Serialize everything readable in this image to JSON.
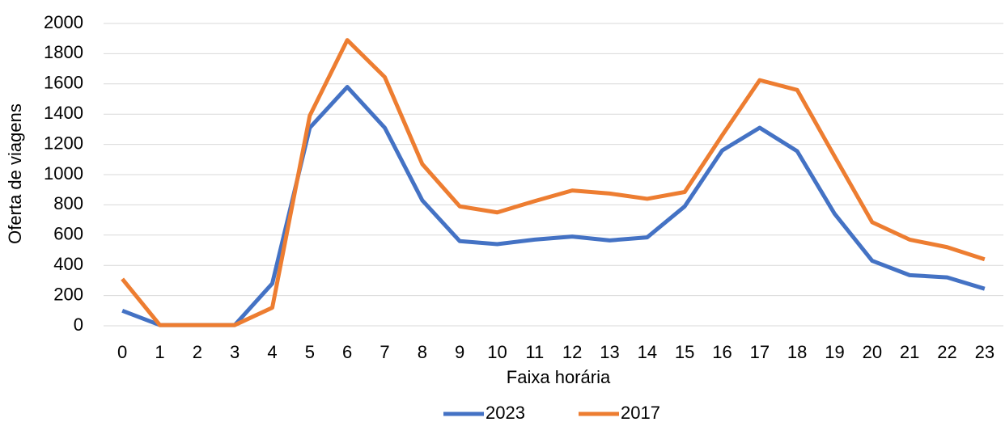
{
  "chart_data": {
    "type": "line",
    "x_label": "Faixa horária",
    "y_label": "Oferta de viagens",
    "categories": [
      "0",
      "1",
      "2",
      "3",
      "4",
      "5",
      "6",
      "7",
      "8",
      "9",
      "10",
      "11",
      "12",
      "13",
      "14",
      "15",
      "16",
      "17",
      "18",
      "19",
      "20",
      "21",
      "22",
      "23"
    ],
    "series": [
      {
        "name": "2023",
        "color": "#4472c4",
        "values": [
          100,
          5,
          5,
          5,
          280,
          1310,
          1580,
          1310,
          830,
          560,
          540,
          570,
          590,
          565,
          585,
          790,
          1160,
          1310,
          1155,
          740,
          430,
          335,
          320,
          245
        ]
      },
      {
        "name": "2017",
        "color": "#ed7d31",
        "values": [
          310,
          5,
          5,
          5,
          120,
          1390,
          1890,
          1645,
          1070,
          790,
          750,
          825,
          895,
          875,
          840,
          885,
          1260,
          1625,
          1560,
          1120,
          685,
          570,
          520,
          440
        ]
      }
    ],
    "ylim": [
      0,
      2000
    ],
    "yticks": [
      0,
      200,
      400,
      600,
      800,
      1000,
      1200,
      1400,
      1600,
      1800,
      2000
    ],
    "grid": true,
    "legend": "bottom"
  }
}
